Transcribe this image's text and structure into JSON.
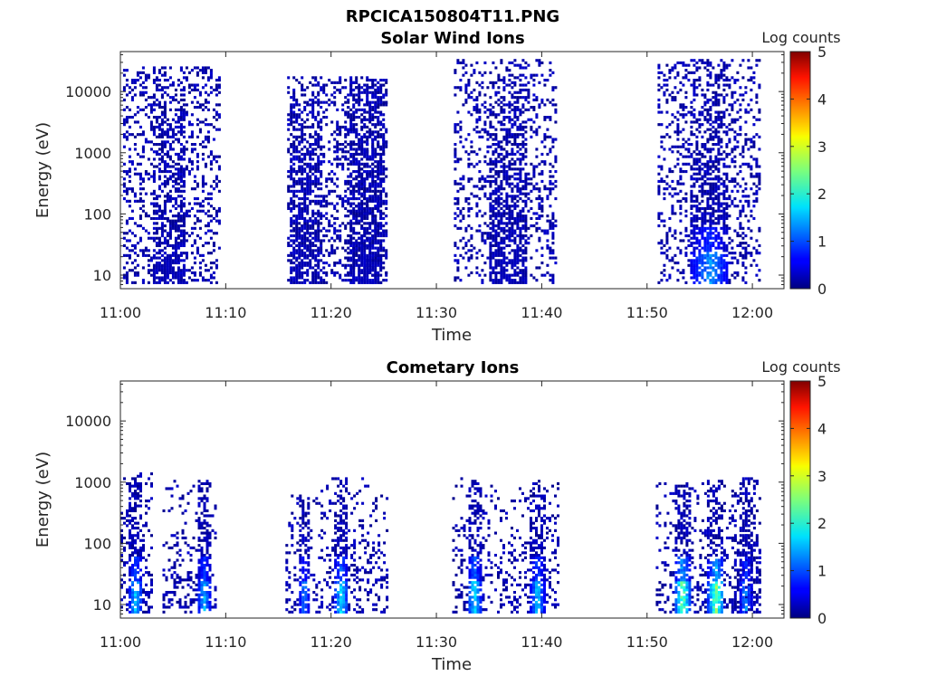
{
  "figure_title": "RPCICA150804T11.PNG",
  "chart_data": [
    {
      "type": "heatmap",
      "title": "Solar Wind Ions",
      "xlabel": "Time",
      "ylabel": "Energy (eV)",
      "x_ticks": [
        "11:00",
        "11:10",
        "11:20",
        "11:30",
        "11:40",
        "11:50",
        "12:00"
      ],
      "y_ticks": [
        "10",
        "100",
        "1000",
        "10000"
      ],
      "y_scale": "log",
      "y_range_ev": [
        6,
        45000
      ],
      "x_range": [
        "11:00",
        "12:03"
      ],
      "colorbar": {
        "label": "Log counts",
        "range": [
          0,
          5
        ],
        "ticks": [
          "0",
          "1",
          "2",
          "3",
          "4",
          "5"
        ],
        "colormap": "jet"
      },
      "bursts": [
        {
          "start": "11:00:15",
          "end": "11:09:20",
          "core_start": "11:02:50",
          "core_end": "11:06:10",
          "e_low": 7,
          "e_high": 25000,
          "peak_level": 0.3,
          "sparse_density": 0.28,
          "core_density": 0.72
        },
        {
          "start": "11:15:50",
          "end": "11:25:20",
          "core_start": "11:15:50",
          "core_end": "11:19:00",
          "e_low": 7,
          "e_high": 18000,
          "peak_level": 0.3,
          "sparse_density": 0.32,
          "core_density": 0.78
        },
        {
          "start": "11:21:30",
          "end": "11:25:20",
          "core_start": "11:21:30",
          "core_end": "11:24:50",
          "e_low": 7,
          "e_high": 16000,
          "peak_level": 0.35,
          "sparse_density": 0.3,
          "core_density": 0.78
        },
        {
          "start": "11:31:40",
          "end": "11:41:20",
          "core_start": "11:34:50",
          "core_end": "11:38:30",
          "e_low": 7,
          "e_high": 35000,
          "peak_level": 0.35,
          "sparse_density": 0.26,
          "core_density": 0.75
        },
        {
          "start": "11:51:00",
          "end": "12:00:40",
          "core_start": "11:54:00",
          "core_end": "11:57:40",
          "e_low": 7,
          "e_high": 35000,
          "peak_level": 1.6,
          "sparse_density": 0.26,
          "core_density": 0.75
        }
      ]
    },
    {
      "type": "heatmap",
      "title": "Cometary Ions",
      "xlabel": "Time",
      "ylabel": "Energy (eV)",
      "x_ticks": [
        "11:00",
        "11:10",
        "11:20",
        "11:30",
        "11:40",
        "11:50",
        "12:00"
      ],
      "y_ticks": [
        "10",
        "100",
        "1000",
        "10000"
      ],
      "y_scale": "log",
      "y_range_ev": [
        6,
        45000
      ],
      "x_range": [
        "11:00",
        "12:03"
      ],
      "colorbar": {
        "label": "Log counts",
        "range": [
          0,
          5
        ],
        "ticks": [
          "0",
          "1",
          "2",
          "3",
          "4",
          "5"
        ],
        "colormap": "jet"
      },
      "bursts": [
        {
          "start": "11:00:00",
          "end": "11:03:00",
          "core_start": "11:00:40",
          "core_end": "11:02:00",
          "e_low": 7,
          "e_high": 1500,
          "peak_level": 1.9,
          "sparse_density": 0.3,
          "core_density": 0.8
        },
        {
          "start": "11:04:00",
          "end": "11:09:00",
          "core_start": "11:07:10",
          "core_end": "11:08:30",
          "e_low": 7,
          "e_high": 1100,
          "peak_level": 1.7,
          "sparse_density": 0.3,
          "core_density": 0.8
        },
        {
          "start": "11:15:40",
          "end": "11:19:00",
          "core_start": "11:16:50",
          "core_end": "11:17:50",
          "e_low": 7,
          "e_high": 600,
          "peak_level": 1.5,
          "sparse_density": 0.28,
          "core_density": 0.8
        },
        {
          "start": "11:19:00",
          "end": "11:25:20",
          "core_start": "11:20:10",
          "core_end": "11:21:30",
          "e_low": 7,
          "e_high": 1200,
          "peak_level": 2.1,
          "sparse_density": 0.3,
          "core_density": 0.8
        },
        {
          "start": "11:31:30",
          "end": "11:35:20",
          "core_start": "11:32:50",
          "core_end": "11:34:10",
          "e_low": 7,
          "e_high": 1200,
          "peak_level": 2.1,
          "sparse_density": 0.3,
          "core_density": 0.8
        },
        {
          "start": "11:35:30",
          "end": "11:41:30",
          "core_start": "11:38:50",
          "core_end": "11:40:10",
          "e_low": 7,
          "e_high": 1100,
          "peak_level": 1.9,
          "sparse_density": 0.3,
          "core_density": 0.8
        },
        {
          "start": "11:50:50",
          "end": "11:55:10",
          "core_start": "11:52:30",
          "core_end": "11:54:00",
          "e_low": 7,
          "e_high": 1000,
          "peak_level": 2.8,
          "sparse_density": 0.3,
          "core_density": 0.8
        },
        {
          "start": "11:55:10",
          "end": "12:00:40",
          "core_start": "11:55:40",
          "core_end": "11:57:10",
          "e_low": 7,
          "e_high": 1200,
          "peak_level": 2.9,
          "sparse_density": 0.3,
          "core_density": 0.8
        },
        {
          "start": "11:58:00",
          "end": "12:00:40",
          "core_start": "11:58:40",
          "core_end": "11:59:50",
          "e_low": 7,
          "e_high": 1200,
          "peak_level": 1.6,
          "sparse_density": 0.3,
          "core_density": 0.8
        }
      ]
    }
  ]
}
